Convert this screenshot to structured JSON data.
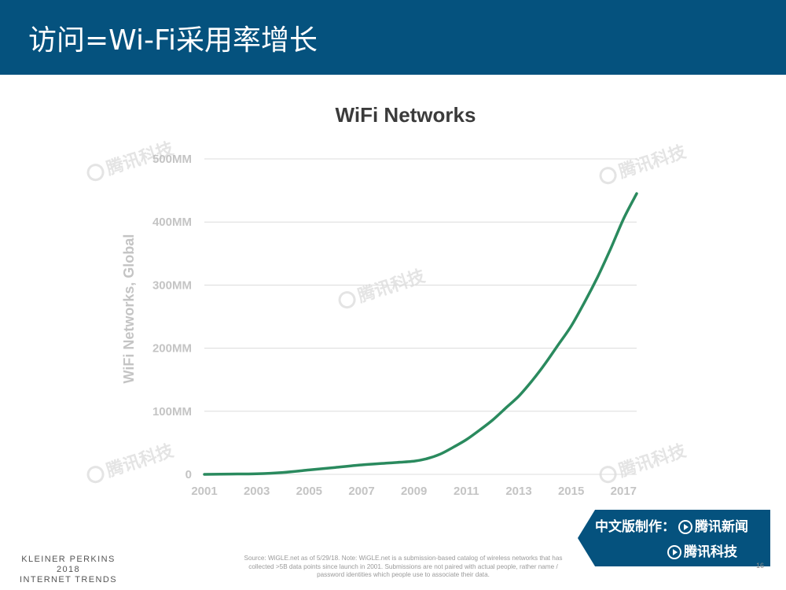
{
  "header": {
    "title": "访问=Wi-Fi采用率增长",
    "background": "#05527e"
  },
  "chart_data": {
    "type": "line",
    "title": "WiFi Networks",
    "ylabel": "WiFi Networks, Global",
    "xlabel": "",
    "xlim": [
      2001,
      2017.5
    ],
    "ylim": [
      0,
      500
    ],
    "x_ticks": [
      "2001",
      "2003",
      "2005",
      "2007",
      "2009",
      "2011",
      "2013",
      "2015",
      "2017"
    ],
    "y_ticks": [
      "0",
      "100MM",
      "200MM",
      "300MM",
      "400MM",
      "500MM"
    ],
    "grid": true,
    "series": [
      {
        "color": "#2a8a5e",
        "x": [
          2001,
          2002,
          2003,
          2004,
          2005,
          2006,
          2007,
          2008,
          2009,
          2009.5,
          2010,
          2010.5,
          2011,
          2011.5,
          2012,
          2012.5,
          2013,
          2013.5,
          2014,
          2014.5,
          2015,
          2015.5,
          2016,
          2016.5,
          2017,
          2017.5
        ],
        "y": [
          0,
          0.5,
          1,
          3,
          7,
          11,
          15,
          18,
          21,
          25,
          32,
          43,
          55,
          70,
          86,
          105,
          124,
          148,
          175,
          205,
          235,
          272,
          312,
          357,
          405,
          445
        ]
      }
    ]
  },
  "watermark": "腾讯科技",
  "badge": {
    "line1_prefix": "中文版制作：",
    "line1_brand": "腾讯新闻",
    "line2_brand": "腾讯科技"
  },
  "footer": {
    "brand_lines": [
      "KLEINER PERKINS",
      "2018",
      "INTERNET TRENDS"
    ],
    "source": "Source: WiGLE.net as of 5/29/18. Note: WiGLE.net is a submission-based catalog of wireless networks that has collected >5B data points since launch in 2001. Submissions are not paired with actual people, rather name / password identities which people use to associate their data.",
    "page_number": "16"
  }
}
